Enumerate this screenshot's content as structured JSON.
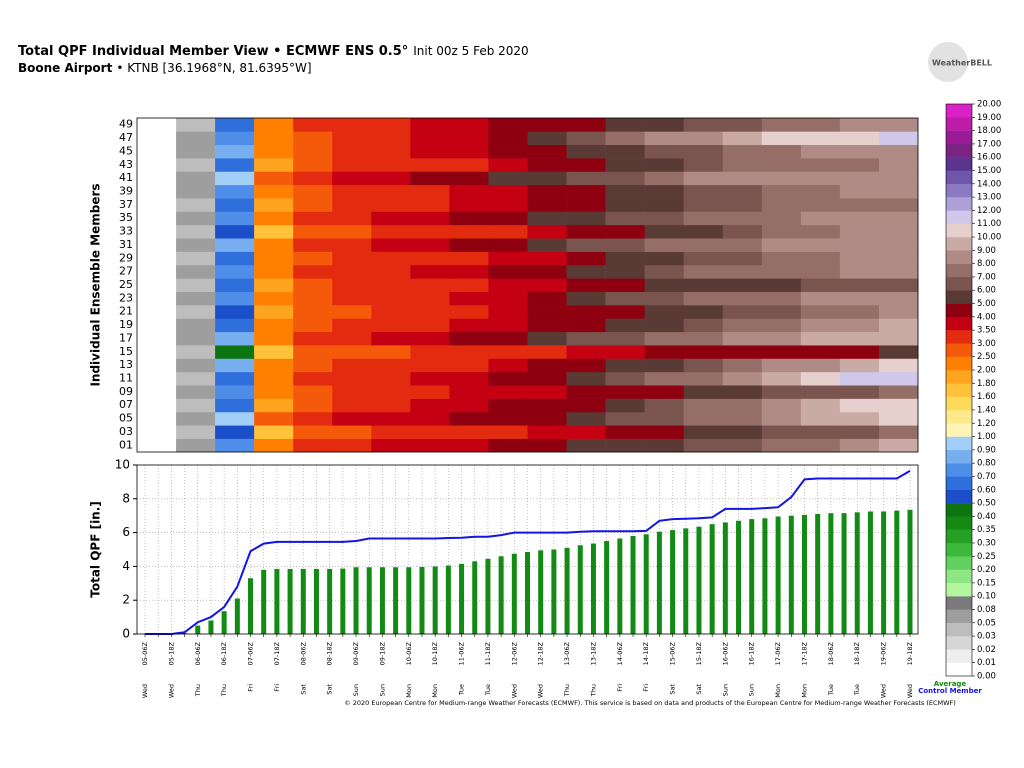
{
  "header": {
    "title": "Total QPF Individual Member View • ECMWF ENS 0.5°",
    "init": "Init 00z 5 Feb 2020",
    "station": "Boone Airport",
    "location": "• KTNB [36.1968°N, 81.6395°W]",
    "logo": "WeatherBELL",
    "footer": "© 2020 European Centre for Medium-range Weather Forecasts (ECMWF). This service is based on data and products of the European Centre for Medium-range Weather Forecasts (ECMWF)"
  },
  "chart_data": [
    {
      "type": "heatmap",
      "ylabel": "Individual Ensemble Members",
      "members": [
        "01",
        "03",
        "05",
        "07",
        "09",
        "11",
        "13",
        "15",
        "17",
        "19",
        "21",
        "23",
        "25",
        "27",
        "29",
        "31",
        "33",
        "35",
        "37",
        "39",
        "41",
        "43",
        "45",
        "47",
        "49"
      ],
      "values": [
        [
          0,
          0.05,
          0.7,
          2.2,
          3.1,
          3.4,
          3.5,
          3.6,
          3.8,
          4.1,
          4.6,
          5.0,
          5.4,
          5.8,
          6.1,
          6.5,
          7.0,
          7.8,
          8.5,
          9.3
        ],
        [
          0,
          0.04,
          0.5,
          1.7,
          2.6,
          2.9,
          3.0,
          3.1,
          3.2,
          3.4,
          3.6,
          3.9,
          4.2,
          4.5,
          5.0,
          5.6,
          6.0,
          6.4,
          6.9,
          7.3
        ],
        [
          0,
          0.06,
          0.9,
          2.6,
          3.3,
          3.5,
          3.6,
          3.7,
          4.0,
          4.4,
          4.9,
          5.5,
          6.1,
          6.8,
          7.3,
          7.9,
          8.6,
          9.2,
          9.8,
          10.5
        ],
        [
          0,
          0.03,
          0.6,
          1.9,
          2.8,
          3.1,
          3.3,
          3.5,
          3.7,
          4.0,
          4.4,
          4.9,
          5.6,
          6.3,
          7.1,
          7.8,
          8.9,
          9.6,
          10.4,
          10.9
        ],
        [
          0,
          0.05,
          0.7,
          2.0,
          2.9,
          3.2,
          3.3,
          3.4,
          3.5,
          3.6,
          3.9,
          4.2,
          4.6,
          4.9,
          5.3,
          5.8,
          6.1,
          6.5,
          6.9,
          7.2
        ],
        [
          0,
          0.04,
          0.6,
          2.3,
          3.0,
          3.3,
          3.4,
          3.5,
          3.7,
          4.1,
          4.8,
          5.6,
          6.5,
          7.2,
          7.8,
          8.6,
          9.5,
          10.4,
          11.0,
          11.3
        ],
        [
          0,
          0.05,
          0.8,
          2.1,
          2.7,
          3.0,
          3.1,
          3.2,
          3.4,
          3.6,
          4.1,
          4.7,
          5.3,
          5.9,
          6.5,
          7.3,
          8.2,
          8.9,
          9.5,
          10.2
        ],
        [
          0,
          0.03,
          0.4,
          1.6,
          2.5,
          2.8,
          2.9,
          3.0,
          3.1,
          3.3,
          3.4,
          3.6,
          3.8,
          4.0,
          4.2,
          4.4,
          4.6,
          4.8,
          4.9,
          5.0
        ],
        [
          0,
          0.06,
          0.8,
          2.4,
          3.1,
          3.4,
          3.5,
          3.7,
          4.0,
          4.5,
          5.2,
          6.0,
          6.7,
          7.3,
          7.9,
          8.4,
          8.8,
          9.1,
          9.4,
          9.7
        ],
        [
          0,
          0.05,
          0.6,
          2.0,
          2.9,
          3.2,
          3.3,
          3.4,
          3.6,
          3.9,
          4.2,
          4.6,
          5.2,
          5.9,
          6.6,
          7.2,
          7.8,
          8.4,
          8.8,
          9.0
        ],
        [
          0,
          0.04,
          0.5,
          1.8,
          2.6,
          2.9,
          3.0,
          3.1,
          3.3,
          3.6,
          4.0,
          4.4,
          4.8,
          5.3,
          5.9,
          6.4,
          6.9,
          7.4,
          7.7,
          8.0
        ],
        [
          0,
          0.05,
          0.7,
          2.1,
          2.9,
          3.2,
          3.3,
          3.4,
          3.5,
          3.8,
          4.4,
          5.2,
          6.0,
          6.7,
          7.2,
          7.6,
          7.9,
          8.1,
          8.3,
          8.5
        ],
        [
          0,
          0.04,
          0.6,
          1.9,
          2.8,
          3.0,
          3.1,
          3.2,
          3.3,
          3.5,
          3.7,
          4.1,
          4.6,
          5.0,
          5.3,
          5.6,
          5.8,
          6.0,
          6.2,
          6.4
        ],
        [
          0,
          0.05,
          0.7,
          2.2,
          3.0,
          3.3,
          3.4,
          3.5,
          3.8,
          4.2,
          4.6,
          5.2,
          5.9,
          6.5,
          7.0,
          7.4,
          7.7,
          7.9,
          8.1,
          8.3
        ],
        [
          0,
          0.04,
          0.6,
          2.0,
          2.8,
          3.0,
          3.1,
          3.2,
          3.3,
          3.5,
          3.8,
          4.3,
          5.0,
          5.7,
          6.3,
          6.9,
          7.4,
          7.8,
          8.0,
          8.2
        ],
        [
          0,
          0.05,
          0.8,
          2.3,
          3.1,
          3.4,
          3.6,
          3.9,
          4.3,
          4.8,
          5.4,
          6.0,
          6.5,
          7.0,
          7.5,
          7.9,
          8.2,
          8.4,
          8.6,
          8.7
        ],
        [
          0,
          0.03,
          0.5,
          1.7,
          2.6,
          2.9,
          3.0,
          3.1,
          3.2,
          3.4,
          3.7,
          4.1,
          4.6,
          5.2,
          5.9,
          6.6,
          7.3,
          7.9,
          8.4,
          8.7
        ],
        [
          0,
          0.05,
          0.7,
          2.2,
          3.0,
          3.3,
          3.5,
          3.8,
          4.2,
          4.6,
          5.1,
          5.6,
          6.2,
          6.7,
          7.2,
          7.6,
          7.9,
          8.1,
          8.3,
          8.5
        ],
        [
          0,
          0.04,
          0.6,
          1.9,
          2.8,
          3.1,
          3.2,
          3.3,
          3.5,
          3.8,
          4.1,
          4.5,
          5.0,
          5.6,
          6.1,
          6.6,
          7.0,
          7.3,
          7.5,
          7.7
        ],
        [
          0,
          0.05,
          0.7,
          2.0,
          2.9,
          3.2,
          3.3,
          3.4,
          3.6,
          3.9,
          4.3,
          4.8,
          5.3,
          5.8,
          6.3,
          6.8,
          7.3,
          7.7,
          8.0,
          8.3
        ],
        [
          0,
          0.06,
          0.9,
          2.5,
          3.2,
          3.6,
          3.9,
          4.3,
          4.8,
          5.3,
          5.8,
          6.3,
          6.9,
          7.5,
          8.0,
          8.3,
          8.5,
          8.6,
          8.7,
          8.8
        ],
        [
          0,
          0.04,
          0.6,
          1.8,
          2.7,
          3.0,
          3.1,
          3.2,
          3.4,
          3.7,
          4.1,
          4.6,
          5.2,
          5.9,
          6.5,
          7.0,
          7.4,
          7.7,
          7.9,
          8.1
        ],
        [
          0,
          0.05,
          0.8,
          2.1,
          2.9,
          3.2,
          3.3,
          3.5,
          3.8,
          4.2,
          4.5,
          5.0,
          5.6,
          6.2,
          6.8,
          7.3,
          7.7,
          8.0,
          8.3,
          8.6
        ],
        [
          0,
          0.05,
          0.7,
          2.0,
          2.9,
          3.2,
          3.4,
          3.6,
          3.9,
          4.4,
          5.1,
          6.0,
          7.0,
          8.0,
          8.9,
          9.6,
          10.2,
          10.6,
          10.9,
          11.1
        ],
        [
          0,
          0.04,
          0.6,
          2.1,
          3.0,
          3.3,
          3.4,
          3.5,
          3.7,
          4.0,
          4.4,
          4.8,
          5.3,
          5.8,
          6.3,
          6.8,
          7.3,
          7.8,
          8.2,
          8.4
        ]
      ],
      "levels": [
        {
          "value": 0,
          "label": "0.00"
        },
        {
          "value": 0.01,
          "label": "0.01"
        },
        {
          "value": 0.02,
          "label": "0.02"
        },
        {
          "value": 0.03,
          "label": "0.03"
        },
        {
          "value": 0.05,
          "label": "0.05"
        },
        {
          "value": 0.08,
          "label": "0.08"
        },
        {
          "value": 0.1,
          "label": "0.10"
        },
        {
          "value": 0.15,
          "label": "0.15"
        },
        {
          "value": 0.2,
          "label": "0.20"
        },
        {
          "value": 0.25,
          "label": "0.25"
        },
        {
          "value": 0.3,
          "label": "0.30"
        },
        {
          "value": 0.35,
          "label": "0.35"
        },
        {
          "value": 0.4,
          "label": "0.40"
        },
        {
          "value": 0.5,
          "label": "0.50"
        },
        {
          "value": 0.6,
          "label": "0.60"
        },
        {
          "value": 0.7,
          "label": "0.70"
        },
        {
          "value": 0.8,
          "label": "0.80"
        },
        {
          "value": 0.9,
          "label": "0.90"
        },
        {
          "value": 1,
          "label": "1.00"
        },
        {
          "value": 1.2,
          "label": "1.20"
        },
        {
          "value": 1.4,
          "label": "1.40"
        },
        {
          "value": 1.6,
          "label": "1.60"
        },
        {
          "value": 1.8,
          "label": "1.80"
        },
        {
          "value": 2,
          "label": "2.00"
        },
        {
          "value": 2.5,
          "label": "2.50"
        },
        {
          "value": 3,
          "label": "3.00"
        },
        {
          "value": 3.5,
          "label": "3.50"
        },
        {
          "value": 4,
          "label": "4.00"
        },
        {
          "value": 5,
          "label": "5.00"
        },
        {
          "value": 6,
          "label": "6.00"
        },
        {
          "value": 7,
          "label": "7.00"
        },
        {
          "value": 8,
          "label": "8.00"
        },
        {
          "value": 9,
          "label": "9.00"
        },
        {
          "value": 10,
          "label": "10.00"
        },
        {
          "value": 11,
          "label": "11.00"
        },
        {
          "value": 12,
          "label": "12.00"
        },
        {
          "value": 13,
          "label": "13.00"
        },
        {
          "value": 14,
          "label": "14.00"
        },
        {
          "value": 15,
          "label": "15.00"
        },
        {
          "value": 16,
          "label": "16.00"
        },
        {
          "value": 17,
          "label": "17.00"
        },
        {
          "value": 18,
          "label": "18.00"
        },
        {
          "value": 19,
          "label": "19.00"
        },
        {
          "value": 20,
          "label": "20.00"
        }
      ],
      "colors": [
        "#ffffff",
        "#eeeeee",
        "#d6d6d6",
        "#bdbdbd",
        "#9e9e9e",
        "#7a7a7a",
        "#b4f5a0",
        "#8ee685",
        "#62d061",
        "#3cb83c",
        "#24a024",
        "#148a14",
        "#0c7410",
        "#1a4fc9",
        "#2f6fdc",
        "#4f8ee8",
        "#76aef0",
        "#a2cff7",
        "#fff5b8",
        "#ffe98a",
        "#ffd95a",
        "#ffc23a",
        "#ffa41e",
        "#ff8000",
        "#f55a0a",
        "#e32b10",
        "#c40012",
        "#8e0010",
        "#5a3a34",
        "#7a544e",
        "#966e68",
        "#b08a84",
        "#caaaa5",
        "#e6d0cd",
        "#cfc8ea",
        "#ada0d8",
        "#8b7ac2",
        "#6e57aa",
        "#5a348e",
        "#7a2382",
        "#9a1c94",
        "#bb1ca8",
        "#da22c6"
      ]
    },
    {
      "type": "bar",
      "ylabel": "Total QPF [in.]",
      "ylim": [
        0,
        10
      ],
      "yticks": [
        0,
        2,
        4,
        6,
        8,
        10
      ],
      "grid": true,
      "categories": [
        "05-06Z",
        null,
        "05-18Z",
        null,
        "06-06Z",
        null,
        "06-18Z",
        null,
        "07-06Z",
        null,
        "07-18Z",
        null,
        "08-06Z",
        null,
        "08-18Z",
        null,
        "09-06Z",
        null,
        "09-18Z",
        null,
        "10-06Z",
        null,
        "10-18Z",
        null,
        "11-06Z",
        null,
        "11-18Z",
        null,
        "12-06Z",
        null,
        "12-18Z",
        null,
        "13-06Z",
        null,
        "13-18Z",
        null,
        "14-06Z",
        null,
        "14-18Z",
        null,
        "15-06Z",
        null,
        "15-18Z",
        null,
        "16-06Z",
        null,
        "16-18Z",
        null,
        "17-06Z",
        null,
        "17-18Z",
        null,
        "18-06Z",
        null,
        "18-18Z",
        null,
        "19-06Z",
        null,
        "19-18Z"
      ],
      "weekdays": [
        "Wed",
        null,
        "Wed",
        null,
        "Thu",
        null,
        "Thu",
        null,
        "Fri",
        null,
        "Fri",
        null,
        "Sat",
        null,
        "Sat",
        null,
        "Sun",
        null,
        "Sun",
        null,
        "Mon",
        null,
        "Mon",
        null,
        "Tue",
        null,
        "Tue",
        null,
        "Wed",
        null,
        "Wed",
        null,
        "Thu",
        null,
        "Thu",
        null,
        "Fri",
        null,
        "Fri",
        null,
        "Sat",
        null,
        "Sat",
        null,
        "Sun",
        null,
        "Sun",
        null,
        "Mon",
        null,
        "Mon",
        null,
        "Tue",
        null,
        "Tue",
        null,
        "Wed",
        null,
        "Wed"
      ],
      "series": [
        {
          "name": "Average",
          "color": "#138a13",
          "values": [
            0,
            0,
            0,
            0.05,
            0.5,
            0.8,
            1.35,
            2.1,
            3.3,
            3.8,
            3.85,
            3.85,
            3.85,
            3.85,
            3.85,
            3.87,
            3.95,
            3.95,
            3.95,
            3.95,
            3.95,
            3.97,
            4.0,
            4.05,
            4.15,
            4.3,
            4.45,
            4.6,
            4.75,
            4.85,
            4.95,
            5.0,
            5.1,
            5.25,
            5.35,
            5.5,
            5.65,
            5.8,
            5.9,
            6.05,
            6.15,
            6.25,
            6.35,
            6.5,
            6.6,
            6.7,
            6.8,
            6.85,
            6.95,
            7.0,
            7.05,
            7.1,
            7.15,
            7.15,
            7.2,
            7.25,
            7.25,
            7.3,
            7.35
          ]
        },
        {
          "name": "Control Member",
          "color": "#1414e6",
          "values": [
            0,
            0,
            0,
            0.1,
            0.7,
            1.0,
            1.6,
            2.8,
            4.9,
            5.35,
            5.45,
            5.45,
            5.45,
            5.45,
            5.45,
            5.45,
            5.5,
            5.65,
            5.65,
            5.65,
            5.65,
            5.65,
            5.65,
            5.68,
            5.7,
            5.75,
            5.75,
            5.85,
            6.0,
            6.0,
            6.0,
            6.0,
            6.0,
            6.05,
            6.08,
            6.08,
            6.08,
            6.08,
            6.1,
            6.7,
            6.8,
            6.82,
            6.85,
            6.9,
            7.4,
            7.4,
            7.4,
            7.45,
            7.5,
            8.1,
            9.15,
            9.2,
            9.2,
            9.2,
            9.2,
            9.2,
            9.2,
            9.2,
            9.65
          ]
        }
      ]
    }
  ]
}
